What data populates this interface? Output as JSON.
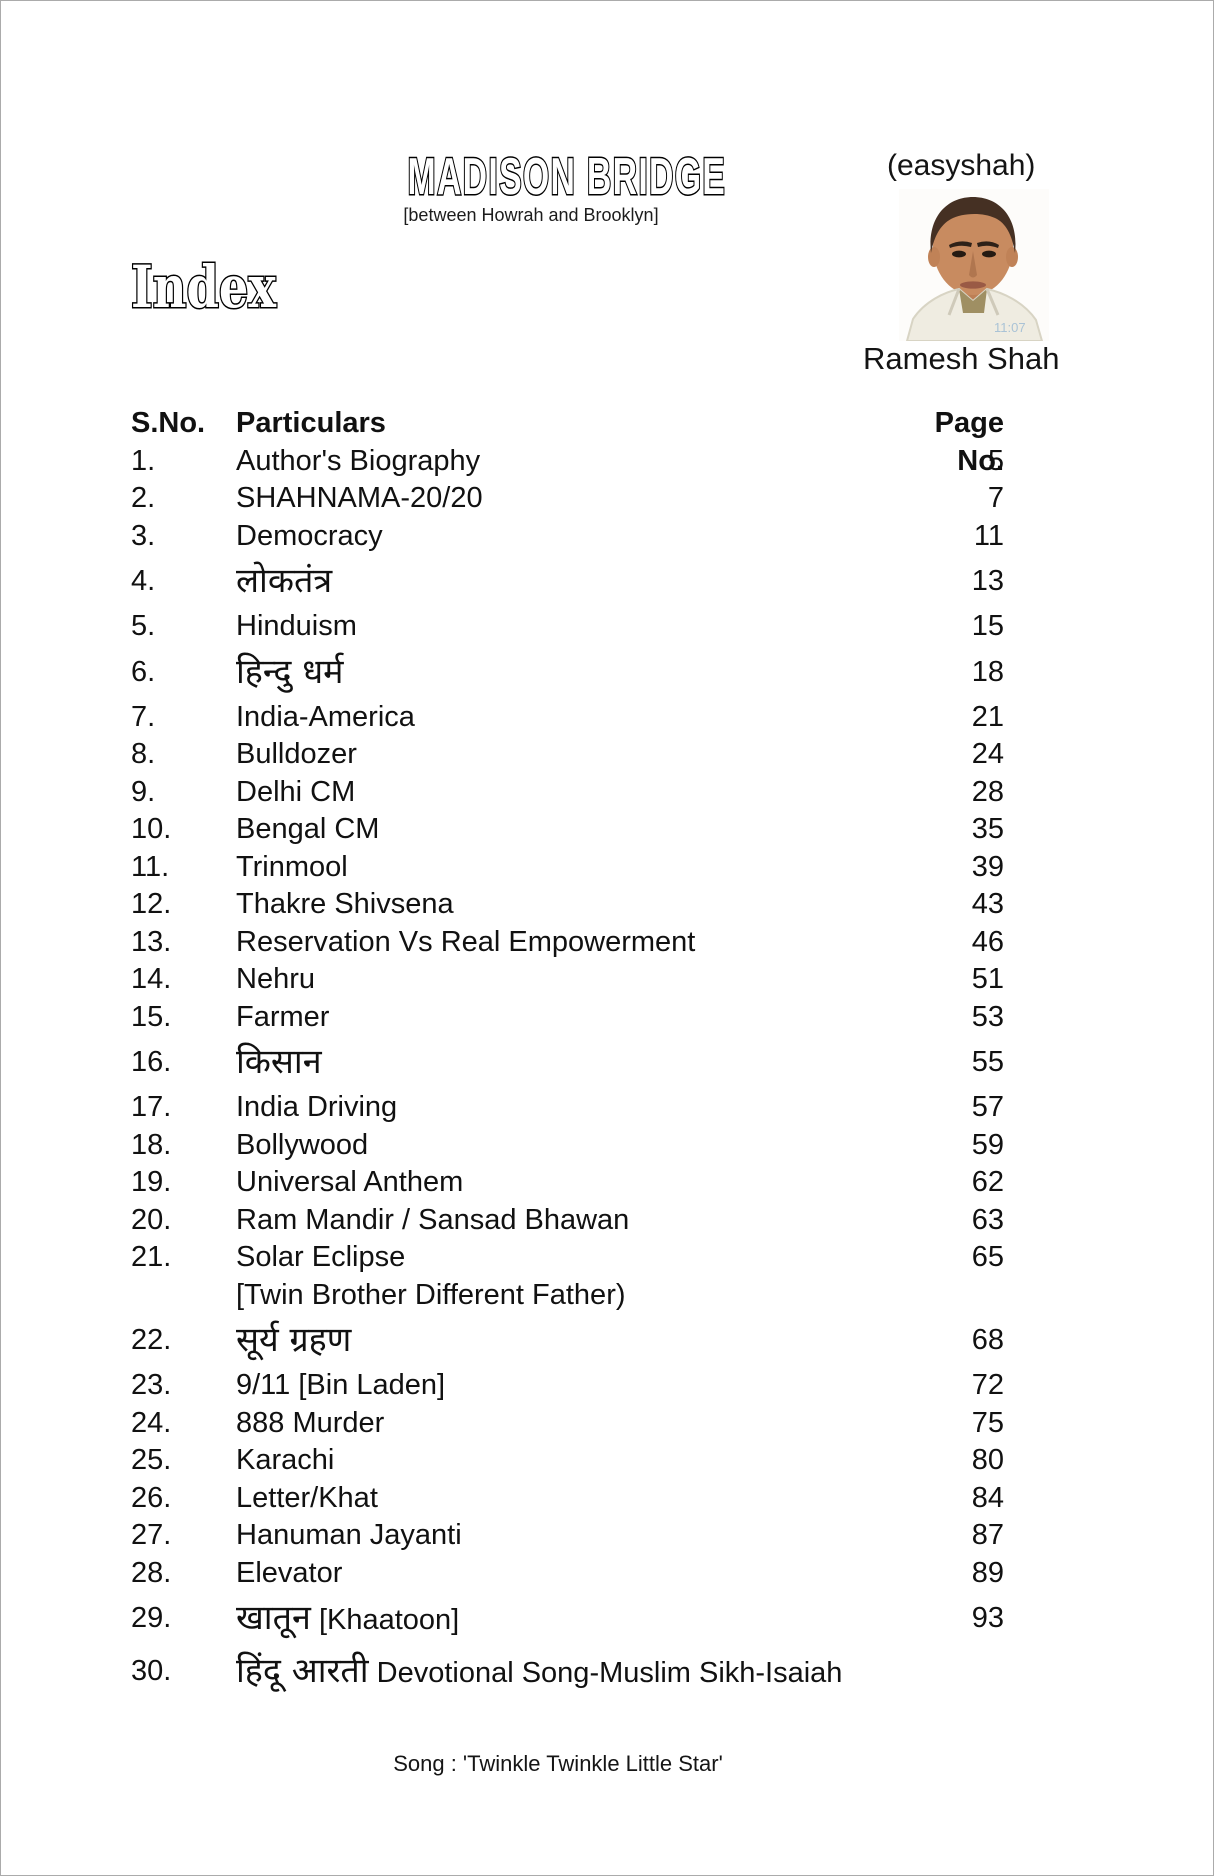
{
  "page": {
    "title": "MADISON BRIDGE",
    "subtitle": "[between Howrah and Brooklyn]",
    "author_alias": "(easyshah)",
    "author_name": "Ramesh Shah",
    "index_heading": "Index",
    "photo_watermark": "11:07",
    "footer": "Song : 'Twinkle Twinkle Little Star'"
  },
  "colors": {
    "ink": "#111111",
    "page_border": "#ababab",
    "hair": "#453023",
    "skin": "#c88b60",
    "jacket": "#efece1",
    "inner_shirt": "#9f8f63",
    "watermark_blue": "#aac3d6"
  },
  "table": {
    "headers": {
      "sno": "S.No.",
      "particulars": "Particulars",
      "page": "Page No."
    },
    "rows": [
      {
        "sno": "1.",
        "en": "Author's Biography",
        "page": "5"
      },
      {
        "sno": "2.",
        "en": "SHAHNAMA-20/20",
        "page": "7"
      },
      {
        "sno": "3.",
        "en": "Democracy",
        "page": "11"
      },
      {
        "sno": "4.",
        "hi": "लोकतंत्र",
        "page": "13"
      },
      {
        "sno": "5.",
        "en": "Hinduism",
        "page": "15"
      },
      {
        "sno": "6.",
        "hi": "हिन्दु धर्म",
        "page": "18"
      },
      {
        "sno": "7.",
        "en": "India-America",
        "page": "21"
      },
      {
        "sno": "8.",
        "en": "Bulldozer",
        "page": "24"
      },
      {
        "sno": "9.",
        "en": "Delhi CM",
        "page": "28"
      },
      {
        "sno": "10.",
        "en": "Bengal CM",
        "page": "35"
      },
      {
        "sno": "11.",
        "en": "Trinmool",
        "page": "39"
      },
      {
        "sno": "12.",
        "en": "Thakre Shivsena",
        "page": "43"
      },
      {
        "sno": "13.",
        "en": "Reservation Vs Real Empowerment",
        "page": "46"
      },
      {
        "sno": "14.",
        "en": "Nehru",
        "page": "51"
      },
      {
        "sno": "15.",
        "en": "Farmer",
        "page": "53"
      },
      {
        "sno": "16.",
        "hi": "किसान",
        "page": "55"
      },
      {
        "sno": "17.",
        "en": "India Driving",
        "page": "57"
      },
      {
        "sno": "18.",
        "en": "Bollywood",
        "page": "59"
      },
      {
        "sno": "19.",
        "en": "Universal Anthem",
        "page": "62"
      },
      {
        "sno": "20.",
        "en": "Ram Mandir / Sansad Bhawan",
        "page": "63"
      },
      {
        "sno": "21.",
        "en": "Solar Eclipse",
        "sub": "[Twin Brother Different Father)",
        "page": "65"
      },
      {
        "sno": "22.",
        "hi": "सूर्य ग्रहण",
        "page": "68"
      },
      {
        "sno": "23.",
        "en": "9/11 [Bin Laden]",
        "page": "72"
      },
      {
        "sno": "24.",
        "en": "888 Murder",
        "page": "75"
      },
      {
        "sno": "25.",
        "en": "Karachi",
        "page": "80"
      },
      {
        "sno": "26.",
        "en": "Letter/Khat",
        "page": "84"
      },
      {
        "sno": "27.",
        "en": "Hanuman Jayanti",
        "page": "87"
      },
      {
        "sno": "28.",
        "en": "Elevator",
        "page": "89"
      },
      {
        "sno": "29.",
        "hi": "खातून",
        "en": "[Khaatoon]",
        "page": "93"
      },
      {
        "sno": "30.",
        "hi": "हिंदू आरती",
        "en": "Devotional Song-Muslim Sikh-Isaiah",
        "page": ""
      }
    ]
  }
}
